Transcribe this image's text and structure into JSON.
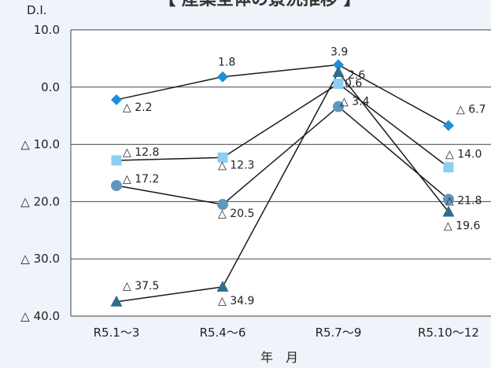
{
  "chart_data": {
    "type": "line",
    "title": "【 産業全体の景況推移 】",
    "ylabel": "D.I.",
    "xlabel": "年　月",
    "categories": [
      "R5.1～3",
      "R5.4～6",
      "R5.7～9",
      "R5.10～12"
    ],
    "ylim": [
      -40,
      10
    ],
    "yticks": [
      {
        "value": 10,
        "label": "10.0"
      },
      {
        "value": 0,
        "label": "0.0"
      },
      {
        "value": -10,
        "label": "△ 10.0"
      },
      {
        "value": -20,
        "label": "△ 20.0"
      },
      {
        "value": -30,
        "label": "△ 30.0"
      },
      {
        "value": -40,
        "label": "△ 40.0"
      }
    ],
    "grid": true,
    "series": [
      {
        "marker": "diamond",
        "color": "#1e8fd6",
        "values": [
          -2.2,
          1.8,
          3.9,
          -6.7
        ],
        "labels": [
          "△ 2.2",
          "1.8",
          "3.9",
          "△ 6.7"
        ]
      },
      {
        "marker": "square",
        "color": "#8ccdf2",
        "values": [
          -12.8,
          -12.3,
          0.6,
          -14.0
        ],
        "labels": [
          "△ 12.8",
          "△ 12.3",
          "0.6",
          "△ 14.0"
        ]
      },
      {
        "marker": "circle",
        "color": "#5f96bd",
        "values": [
          -17.2,
          -20.5,
          -3.4,
          -19.6
        ],
        "labels": [
          "△ 17.2",
          "△ 20.5",
          "△ 3.4",
          "△ 19.6"
        ]
      },
      {
        "marker": "triangle",
        "color": "#2e6e8c",
        "values": [
          -37.5,
          -34.9,
          2.6,
          -21.8
        ],
        "labels": [
          "△ 37.5",
          "△ 34.9",
          "2.6",
          "△ 21.8"
        ]
      }
    ]
  }
}
